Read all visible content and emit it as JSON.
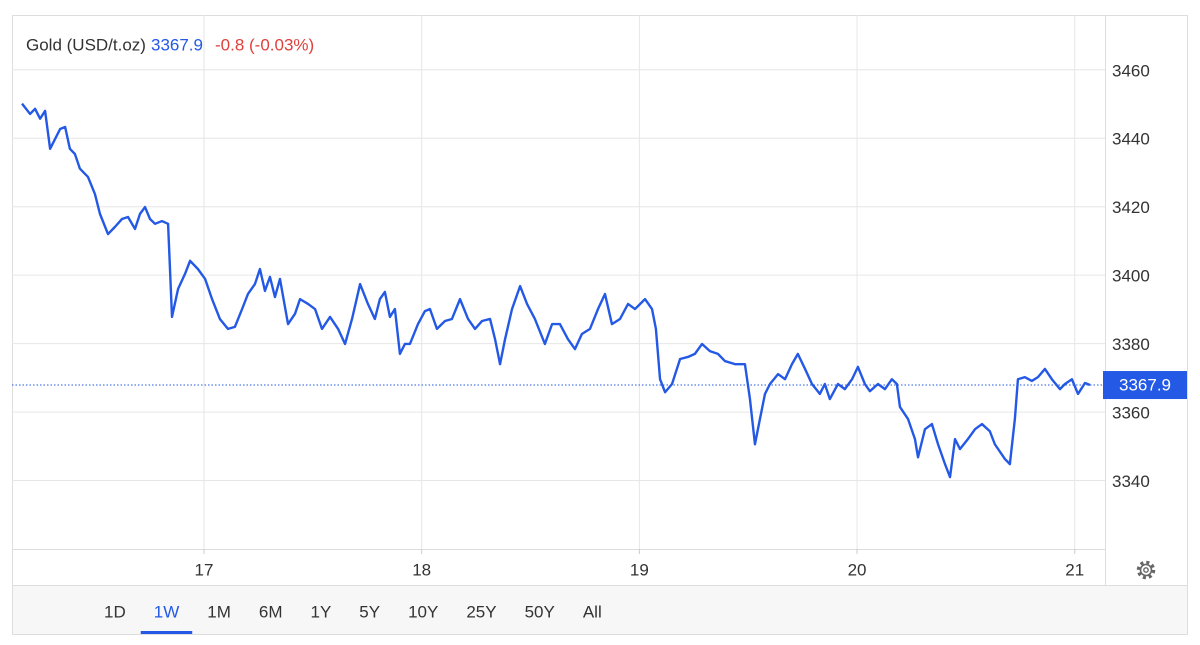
{
  "chart_data": {
    "type": "line",
    "title": "Gold (USD/t.oz)",
    "last": 3367.9,
    "change": "-0.8 (-0.03%)",
    "color": "#2459e6",
    "x": [
      16.164,
      16.201,
      16.224,
      16.247,
      16.27,
      16.293,
      16.316,
      16.339,
      16.362,
      16.384,
      16.407,
      16.43,
      16.467,
      16.499,
      16.522,
      16.559,
      16.591,
      16.623,
      16.651,
      16.683,
      16.706,
      16.729,
      16.752,
      16.775,
      16.807,
      16.835,
      16.853,
      16.881,
      16.913,
      16.936,
      16.972,
      17.005,
      17.037,
      17.073,
      17.11,
      17.142,
      17.175,
      17.202,
      17.234,
      17.257,
      17.28,
      17.303,
      17.326,
      17.349,
      17.386,
      17.418,
      17.441,
      17.478,
      17.51,
      17.542,
      17.579,
      17.616,
      17.648,
      17.68,
      17.717,
      17.753,
      17.785,
      17.808,
      17.831,
      17.854,
      17.877,
      17.9,
      17.923,
      17.946,
      17.983,
      18.015,
      18.038,
      18.07,
      18.107,
      18.139,
      18.176,
      18.213,
      18.245,
      18.277,
      18.314,
      18.337,
      18.36,
      18.383,
      18.415,
      18.452,
      18.484,
      18.52,
      18.566,
      18.599,
      18.635,
      18.672,
      18.704,
      18.736,
      18.773,
      18.81,
      18.842,
      18.874,
      18.911,
      18.948,
      18.98,
      19.026,
      19.058,
      19.076,
      19.095,
      19.118,
      19.15,
      19.187,
      19.223,
      19.255,
      19.288,
      19.324,
      19.361,
      19.393,
      19.439,
      19.485,
      19.508,
      19.531,
      19.554,
      19.577,
      19.6,
      19.637,
      19.669,
      19.701,
      19.728,
      19.761,
      19.793,
      19.829,
      19.852,
      19.875,
      19.912,
      19.944,
      19.977,
      20.004,
      20.036,
      20.059,
      20.096,
      20.128,
      20.16,
      20.183,
      20.197,
      20.234,
      20.266,
      20.28,
      20.312,
      20.344,
      20.372,
      20.404,
      20.427,
      20.45,
      20.473,
      20.509,
      20.542,
      20.574,
      20.61,
      20.633,
      20.679,
      20.702,
      20.725,
      20.739,
      20.771,
      20.803,
      20.831,
      20.863,
      20.895,
      20.932,
      20.955,
      20.987,
      21.015,
      21.047,
      21.07
    ],
    "values": [
      3450.1,
      3447.1,
      3448.6,
      3445.7,
      3448.0,
      3436.9,
      3439.8,
      3442.7,
      3443.3,
      3436.9,
      3435.4,
      3431.1,
      3428.7,
      3423.7,
      3417.9,
      3412.0,
      3414.1,
      3416.4,
      3417.0,
      3413.5,
      3417.9,
      3419.9,
      3416.4,
      3415.0,
      3415.8,
      3415.0,
      3387.8,
      3396.0,
      3400.4,
      3404.2,
      3401.8,
      3398.9,
      3393.0,
      3387.2,
      3384.3,
      3384.9,
      3390.1,
      3394.5,
      3397.4,
      3401.8,
      3395.4,
      3399.5,
      3393.6,
      3398.9,
      3385.7,
      3388.7,
      3393.0,
      3391.6,
      3390.1,
      3384.3,
      3387.8,
      3384.3,
      3379.9,
      3387.2,
      3397.4,
      3391.6,
      3387.2,
      3393.0,
      3395.1,
      3387.8,
      3390.1,
      3377.0,
      3379.9,
      3379.9,
      3385.7,
      3389.5,
      3390.1,
      3384.3,
      3386.6,
      3387.2,
      3393.0,
      3387.2,
      3384.3,
      3386.6,
      3387.2,
      3381.3,
      3374.0,
      3381.3,
      3390.1,
      3396.8,
      3391.6,
      3387.2,
      3379.9,
      3385.7,
      3385.7,
      3381.3,
      3378.4,
      3382.8,
      3384.3,
      3390.1,
      3394.5,
      3385.7,
      3387.2,
      3391.6,
      3390.1,
      3393.0,
      3390.1,
      3384.3,
      3369.6,
      3365.8,
      3368.2,
      3375.5,
      3376.1,
      3377.0,
      3379.9,
      3377.8,
      3377.0,
      3374.9,
      3374.0,
      3374.0,
      3363.8,
      3350.6,
      3358.0,
      3365.3,
      3368.2,
      3371.1,
      3369.6,
      3374.0,
      3377.0,
      3372.6,
      3368.2,
      3365.3,
      3368.2,
      3363.8,
      3368.2,
      3366.7,
      3369.6,
      3373.2,
      3368.2,
      3366.1,
      3368.2,
      3366.7,
      3369.6,
      3368.2,
      3361.5,
      3358.0,
      3352.1,
      3346.8,
      3355.0,
      3356.5,
      3350.6,
      3344.8,
      3341.0,
      3352.1,
      3349.2,
      3352.1,
      3355.0,
      3356.5,
      3354.4,
      3350.6,
      3346.3,
      3344.8,
      3358.0,
      3369.6,
      3370.2,
      3369.1,
      3370.2,
      3372.6,
      3369.6,
      3366.7,
      3368.2,
      3369.6,
      3365.3,
      3368.5,
      3367.9
    ],
    "xlim": [
      16.118,
      21.139
    ],
    "xticks": [
      17,
      18,
      19,
      20,
      21
    ],
    "ylim": [
      3320,
      3476
    ],
    "yticks": [
      3340,
      3360,
      3380,
      3400,
      3420,
      3440,
      3460
    ],
    "grid": true,
    "range_buttons": [
      "1D",
      "1W",
      "1M",
      "6M",
      "1Y",
      "5Y",
      "10Y",
      "25Y",
      "50Y",
      "All"
    ],
    "selected_range": "1W"
  }
}
